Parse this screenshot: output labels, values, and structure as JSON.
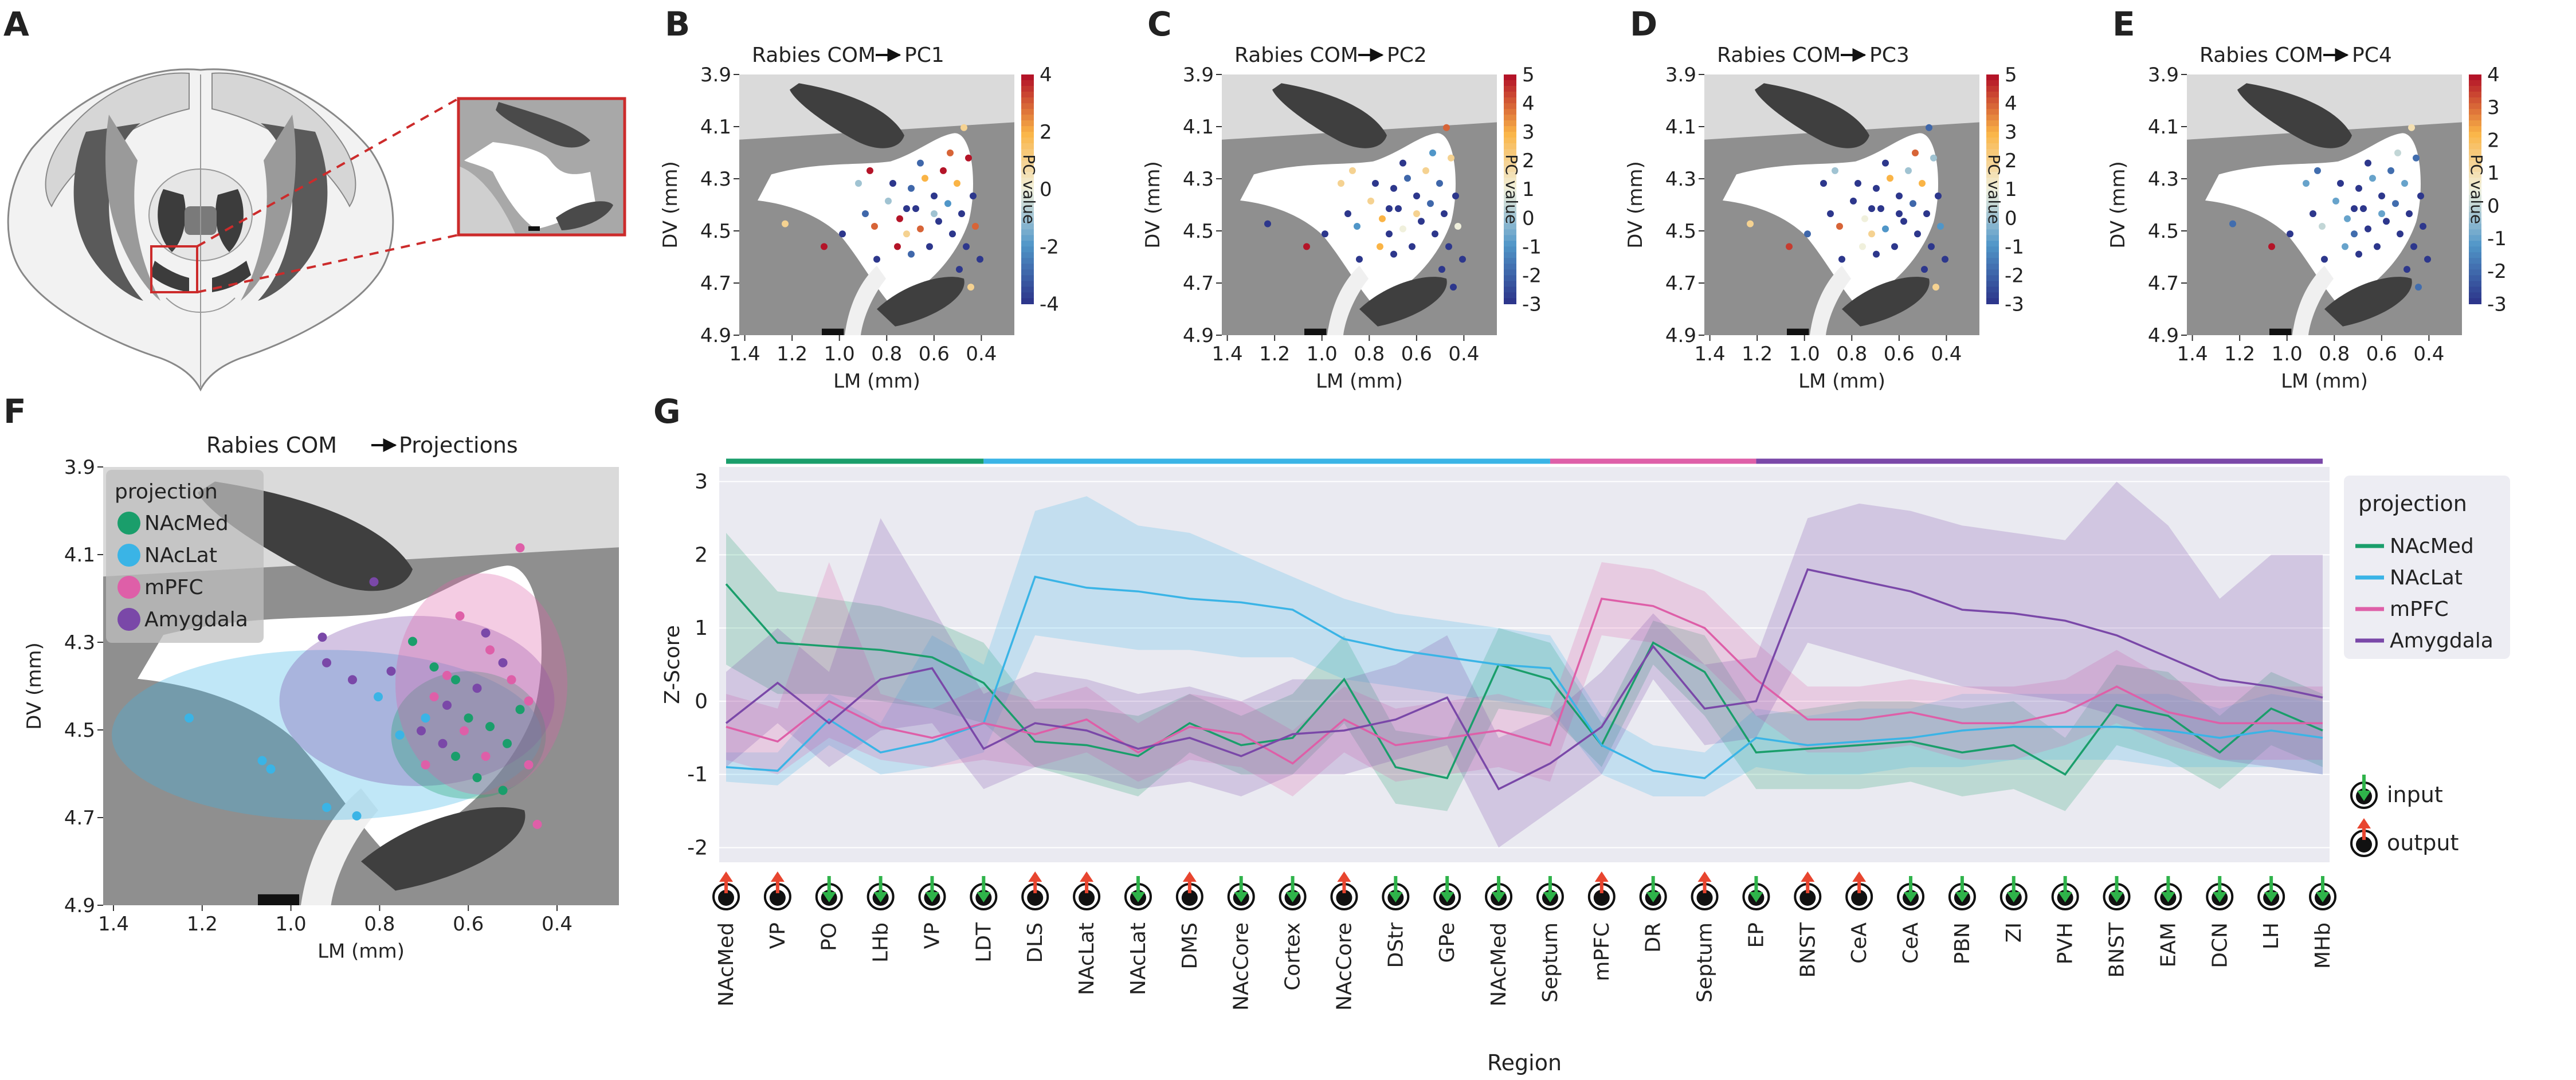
{
  "panel_letters": [
    "A",
    "B",
    "C",
    "D",
    "E",
    "F",
    "G"
  ],
  "colors": {
    "NAcMed": "#1a9e6b",
    "NAcLat": "#3ab4e6",
    "mPFC": "#de5fa8",
    "Amygdala": "#7a48a8",
    "up_arrow": "#e8452f",
    "down_arrow": "#2fb34a",
    "brain_dark": "#4d4d4d",
    "brain_mid": "#8c8c8c",
    "brain_light": "#c9c9c9"
  },
  "pc_panels": [
    {
      "letter": "B",
      "title": "Rabies COM",
      "target": "PC1",
      "colorbar_ticks": [
        "4",
        "2",
        "0",
        "-2",
        "-4"
      ],
      "colorbar_label": "PC value"
    },
    {
      "letter": "C",
      "title": "Rabies COM",
      "target": "PC2",
      "colorbar_ticks": [
        "5",
        "4",
        "3",
        "2",
        "1",
        "0",
        "-1",
        "-2",
        "-3"
      ],
      "colorbar_label": "PC value"
    },
    {
      "letter": "D",
      "title": "Rabies COM",
      "target": "PC3",
      "colorbar_ticks": [
        "5",
        "4",
        "3",
        "2",
        "1",
        "0",
        "-1",
        "-2",
        "-3"
      ],
      "colorbar_label": "PC value"
    },
    {
      "letter": "E",
      "title": "Rabies COM",
      "target": "PC4",
      "colorbar_ticks": [
        "4",
        "3",
        "2",
        "1",
        "0",
        "-1",
        "-2",
        "-3"
      ],
      "colorbar_label": "PC value"
    }
  ],
  "chart_data": [
    {
      "type": "scatter",
      "panel": "F",
      "title": "Rabies COM",
      "title_target": "Projections",
      "xlabel": "LM (mm)",
      "ylabel": "DV (mm)",
      "x_ticks": [
        "1.4",
        "1.2",
        "1.0",
        "0.8",
        "0.6",
        "0.4"
      ],
      "y_ticks": [
        "3.9",
        "4.1",
        "4.3",
        "4.5",
        "4.7",
        "4.9"
      ],
      "xlim": [
        1.45,
        0.25
      ],
      "ylim": [
        3.87,
        4.9
      ],
      "legend_title": "projection",
      "legend": [
        "NAcMed",
        "NAcLat",
        "mPFC",
        "Amygdala"
      ],
      "series": [
        {
          "name": "NAcLat",
          "points": [
            [
              1.25,
              4.46
            ],
            [
              1.08,
              4.56
            ],
            [
              1.06,
              4.58
            ],
            [
              0.93,
              4.67
            ],
            [
              0.86,
              4.69
            ],
            [
              0.76,
              4.5
            ],
            [
              0.81,
              4.41
            ],
            [
              0.7,
              4.46
            ]
          ]
        },
        {
          "name": "Amygdala",
          "points": [
            [
              0.82,
              4.14
            ],
            [
              0.94,
              4.27
            ],
            [
              0.93,
              4.33
            ],
            [
              0.87,
              4.37
            ],
            [
              0.78,
              4.35
            ],
            [
              0.71,
              4.49
            ],
            [
              0.66,
              4.52
            ],
            [
              0.58,
              4.39
            ],
            [
              0.52,
              4.33
            ],
            [
              0.56,
              4.26
            ],
            [
              0.65,
              4.43
            ]
          ]
        },
        {
          "name": "NAcMed",
          "points": [
            [
              0.73,
              4.28
            ],
            [
              0.68,
              4.34
            ],
            [
              0.63,
              4.37
            ],
            [
              0.6,
              4.46
            ],
            [
              0.55,
              4.48
            ],
            [
              0.51,
              4.52
            ],
            [
              0.48,
              4.44
            ],
            [
              0.63,
              4.55
            ],
            [
              0.58,
              4.6
            ],
            [
              0.52,
              4.63
            ]
          ]
        },
        {
          "name": "mPFC",
          "points": [
            [
              0.48,
              4.06
            ],
            [
              0.62,
              4.22
            ],
            [
              0.55,
              4.3
            ],
            [
              0.5,
              4.37
            ],
            [
              0.46,
              4.42
            ],
            [
              0.68,
              4.41
            ],
            [
              0.61,
              4.49
            ],
            [
              0.56,
              4.55
            ],
            [
              0.46,
              4.57
            ],
            [
              0.44,
              4.71
            ],
            [
              0.7,
              4.57
            ],
            [
              0.65,
              4.36
            ]
          ]
        }
      ]
    },
    {
      "type": "line",
      "panel": "G",
      "xlabel": "Region",
      "ylabel": "Z-Score",
      "ylim": [
        -2.2,
        3.2
      ],
      "y_ticks": [
        "3",
        "2",
        "1",
        "0",
        "-1",
        "-2"
      ],
      "legend_title": "projection",
      "legend": [
        "NAcMed",
        "NAcLat",
        "mPFC",
        "Amygdala"
      ],
      "io_legend": {
        "input": "input",
        "output": "output"
      },
      "categories": [
        "NAcMed",
        "VP",
        "PO",
        "LHb",
        "VP",
        "LDT",
        "DLS",
        "NAcLat",
        "NAcLat",
        "DMS",
        "NAcCore",
        "Cortex",
        "NAcCore",
        "DStr",
        "GPe",
        "NAcMed",
        "Septum",
        "mPFC",
        "DR",
        "Septum",
        "EP",
        "BNST",
        "CeA",
        "CeA",
        "PBN",
        "ZI",
        "PVH",
        "BNST",
        "EAM",
        "DCN",
        "LH",
        "MHb"
      ],
      "direction": [
        "output",
        "output",
        "input",
        "input",
        "input",
        "input",
        "output",
        "output",
        "input",
        "output",
        "input",
        "input",
        "output",
        "input",
        "input",
        "input",
        "input",
        "output",
        "input",
        "output",
        "input",
        "output",
        "output",
        "input",
        "input",
        "input",
        "input",
        "input",
        "input",
        "input",
        "input",
        "input"
      ],
      "group_bars": [
        {
          "name": "NAcMed",
          "from": 0,
          "to": 5
        },
        {
          "name": "NAcLat",
          "from": 5,
          "to": 16
        },
        {
          "name": "mPFC",
          "from": 16,
          "to": 20
        },
        {
          "name": "Amygdala",
          "from": 20,
          "to": 31
        }
      ],
      "series": [
        {
          "name": "NAcMed",
          "values": [
            1.6,
            0.8,
            0.75,
            0.7,
            0.6,
            0.25,
            -0.55,
            -0.6,
            -0.75,
            -0.3,
            -0.6,
            -0.5,
            0.3,
            -0.9,
            -1.05,
            0.5,
            0.3,
            -0.6,
            0.8,
            0.4,
            -0.7,
            -0.65,
            -0.6,
            -0.55,
            -0.7,
            -0.6,
            -1.0,
            -0.05,
            -0.2,
            -0.7,
            -0.1,
            -0.4
          ],
          "lower": [
            0.5,
            0.1,
            0.1,
            0.0,
            -0.1,
            -0.3,
            -0.9,
            -1.1,
            -1.3,
            -0.7,
            -1.0,
            -1.0,
            -0.3,
            -1.4,
            -1.5,
            -0.1,
            -0.2,
            -0.9,
            0.5,
            -0.2,
            -1.2,
            -1.2,
            -1.2,
            -1.1,
            -1.3,
            -1.2,
            -1.5,
            -0.6,
            -0.8,
            -1.2,
            -0.6,
            -0.9
          ],
          "upper": [
            2.3,
            1.5,
            1.4,
            1.3,
            1.1,
            0.8,
            -0.1,
            -0.1,
            -0.2,
            0.1,
            -0.2,
            0.1,
            0.9,
            -0.4,
            -0.5,
            1.0,
            0.8,
            -0.3,
            1.1,
            0.9,
            -0.2,
            -0.1,
            0.0,
            0.0,
            -0.1,
            0.0,
            -0.5,
            0.5,
            0.4,
            -0.2,
            0.4,
            0.1
          ]
        },
        {
          "name": "NAcLat",
          "values": [
            -0.9,
            -0.95,
            -0.25,
            -0.7,
            -0.55,
            -0.3,
            1.7,
            1.55,
            1.5,
            1.4,
            1.35,
            1.25,
            0.85,
            0.7,
            0.6,
            0.5,
            0.45,
            -0.6,
            -0.95,
            -1.05,
            -0.5,
            -0.6,
            -0.55,
            -0.5,
            -0.4,
            -0.35,
            -0.35,
            -0.35,
            -0.4,
            -0.5,
            -0.4,
            -0.5
          ],
          "lower": [
            -1.1,
            -1.15,
            -0.6,
            -1.0,
            -0.9,
            -0.7,
            0.9,
            0.8,
            0.7,
            0.7,
            0.6,
            0.6,
            0.3,
            0.2,
            0.1,
            0.0,
            -0.1,
            -1.0,
            -1.3,
            -1.3,
            -0.9,
            -1.0,
            -1.0,
            -0.9,
            -0.9,
            -0.8,
            -0.8,
            -0.8,
            -0.9,
            -0.9,
            -0.9,
            -1.0
          ],
          "upper": [
            -0.7,
            -0.7,
            0.1,
            -0.3,
            0.9,
            0.5,
            2.6,
            2.8,
            2.4,
            2.3,
            2.0,
            1.7,
            1.4,
            1.2,
            1.1,
            1.0,
            0.9,
            -0.2,
            -0.6,
            -0.7,
            -0.1,
            -0.2,
            -0.1,
            -0.1,
            0.1,
            0.1,
            0.1,
            0.1,
            0.1,
            -0.1,
            0.1,
            0.0
          ]
        },
        {
          "name": "mPFC",
          "values": [
            -0.35,
            -0.55,
            0.0,
            -0.35,
            -0.5,
            -0.3,
            -0.45,
            -0.25,
            -0.7,
            -0.35,
            -0.45,
            -0.85,
            -0.25,
            -0.6,
            -0.5,
            -0.4,
            -0.6,
            1.4,
            1.3,
            1.0,
            0.3,
            -0.25,
            -0.25,
            -0.15,
            -0.3,
            -0.3,
            -0.15,
            0.2,
            -0.15,
            -0.3,
            -0.3,
            -0.3
          ],
          "lower": [
            -0.8,
            -1.0,
            -0.5,
            -0.8,
            -0.9,
            -0.8,
            -0.9,
            -0.7,
            -1.1,
            -0.8,
            -0.9,
            -1.3,
            -0.7,
            -1.1,
            -1.0,
            -0.9,
            -1.1,
            0.9,
            0.8,
            0.5,
            -0.2,
            -0.7,
            -0.7,
            -0.6,
            -0.8,
            -0.8,
            -0.6,
            -0.3,
            -0.6,
            -0.8,
            -0.8,
            -0.8
          ],
          "upper": [
            0.1,
            -0.1,
            1.9,
            0.1,
            -0.1,
            0.2,
            0.0,
            0.2,
            -0.3,
            0.1,
            0.0,
            -0.4,
            0.2,
            -0.1,
            0.0,
            0.1,
            -0.1,
            1.9,
            1.8,
            1.5,
            0.8,
            0.2,
            0.2,
            0.3,
            0.2,
            0.2,
            0.3,
            0.7,
            0.3,
            0.2,
            0.2,
            0.2
          ]
        },
        {
          "name": "Amygdala",
          "values": [
            -0.3,
            0.25,
            -0.3,
            0.3,
            0.45,
            -0.65,
            -0.3,
            -0.4,
            -0.65,
            -0.5,
            -0.75,
            -0.45,
            -0.4,
            -0.25,
            0.05,
            -1.2,
            -0.85,
            -0.35,
            0.75,
            -0.1,
            0.0,
            1.8,
            1.65,
            1.5,
            1.25,
            1.2,
            1.1,
            0.9,
            0.6,
            0.3,
            0.2,
            0.05
          ],
          "lower": [
            -0.9,
            -0.3,
            -0.9,
            -0.4,
            -0.3,
            -1.2,
            -0.9,
            -1.0,
            -1.2,
            -1.1,
            -1.3,
            -1.0,
            -1.0,
            -0.8,
            -0.6,
            -2.0,
            -1.5,
            -1.0,
            0.3,
            -0.6,
            -0.5,
            0.8,
            0.6,
            0.4,
            0.2,
            0.1,
            0.0,
            -0.2,
            -0.5,
            -0.8,
            -0.9,
            -1.0
          ],
          "upper": [
            0.4,
            1.0,
            0.4,
            2.5,
            1.3,
            0.1,
            0.4,
            0.3,
            0.1,
            0.2,
            0.0,
            0.3,
            0.3,
            0.5,
            0.9,
            -0.5,
            -0.2,
            0.4,
            1.2,
            0.5,
            0.6,
            2.5,
            2.7,
            2.6,
            2.4,
            2.3,
            2.2,
            3.0,
            2.4,
            1.4,
            2.0,
            2.0
          ]
        }
      ]
    }
  ]
}
